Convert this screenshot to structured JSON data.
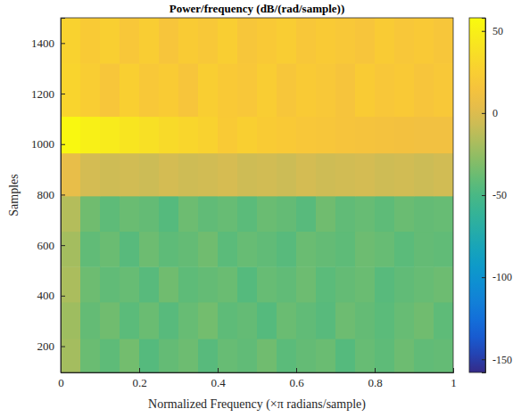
{
  "chart_data": {
    "type": "heatmap",
    "title": "Power/frequency (dB/(rad/sample))",
    "x_label": "Normalized Frequency (×π radians/sample)",
    "y_label": "Samples",
    "xlim": [
      0,
      1
    ],
    "xticks": [
      0,
      0.2,
      0.4,
      0.6,
      0.8,
      1
    ],
    "ylim": [
      96,
      1500
    ],
    "yticks": [
      200,
      400,
      600,
      800,
      1000,
      1200,
      1400
    ],
    "x_edges": [
      0,
      0.05,
      0.1,
      0.15,
      0.2,
      0.25,
      0.3,
      0.35,
      0.4,
      0.45,
      0.5,
      0.55,
      0.6,
      0.65,
      0.7,
      0.75,
      0.8,
      0.85,
      0.9,
      0.95,
      1
    ],
    "y_edges": [
      96,
      230,
      375,
      515,
      655,
      795,
      965,
      1110,
      1320,
      1500
    ],
    "cells": [
      [
        -20,
        -38,
        -42,
        -35,
        -45,
        -40,
        -37,
        -44,
        -39,
        -41,
        -36,
        -43,
        -40,
        -38,
        -45,
        -39,
        -42,
        -37,
        -41,
        -40
      ],
      [
        -22,
        -40,
        -36,
        -43,
        -38,
        -44,
        -39,
        -35,
        -42,
        -40,
        -45,
        -38,
        -41,
        -44,
        -37,
        -40,
        -43,
        -39,
        -36,
        -42
      ],
      [
        -18,
        -37,
        -41,
        -39,
        -44,
        -36,
        -42,
        -40,
        -38,
        -45,
        -39,
        -41,
        -37,
        -43,
        -40,
        -38,
        -44,
        -41,
        -39,
        -37
      ],
      [
        -20,
        -41,
        -38,
        -44,
        -37,
        -42,
        -40,
        -36,
        -43,
        -39,
        -41,
        -44,
        -38,
        -40,
        -42,
        -37,
        -39,
        -43,
        -40,
        -41
      ],
      [
        -15,
        -36,
        -42,
        -38,
        -40,
        -45,
        -37,
        -41,
        -39,
        -43,
        -38,
        -40,
        -44,
        -36,
        -41,
        -39,
        -42,
        -38,
        -40,
        -39
      ],
      [
        5,
        -4,
        -6,
        -5,
        -7,
        -4,
        -6,
        -5,
        -3,
        -6,
        -5,
        -7,
        -4,
        -6,
        -5,
        -4,
        -6,
        -5,
        -7,
        -5
      ],
      [
        56,
        50,
        46,
        42,
        38,
        34,
        31,
        28,
        22,
        26,
        23,
        21,
        19,
        18,
        16,
        15,
        14,
        13,
        12,
        12
      ],
      [
        30,
        24,
        18,
        26,
        20,
        23,
        17,
        25,
        21,
        19,
        24,
        18,
        22,
        20,
        16,
        23,
        19,
        21,
        17,
        20
      ],
      [
        28,
        22,
        26,
        19,
        24,
        17,
        23,
        20,
        25,
        18,
        21,
        24,
        19,
        22,
        20,
        17,
        23,
        19,
        21,
        18
      ]
    ],
    "colorbar_lim": [
      -158,
      58
    ],
    "colorbar_ticks": [
      -150,
      -100,
      -50,
      0,
      50
    ]
  }
}
